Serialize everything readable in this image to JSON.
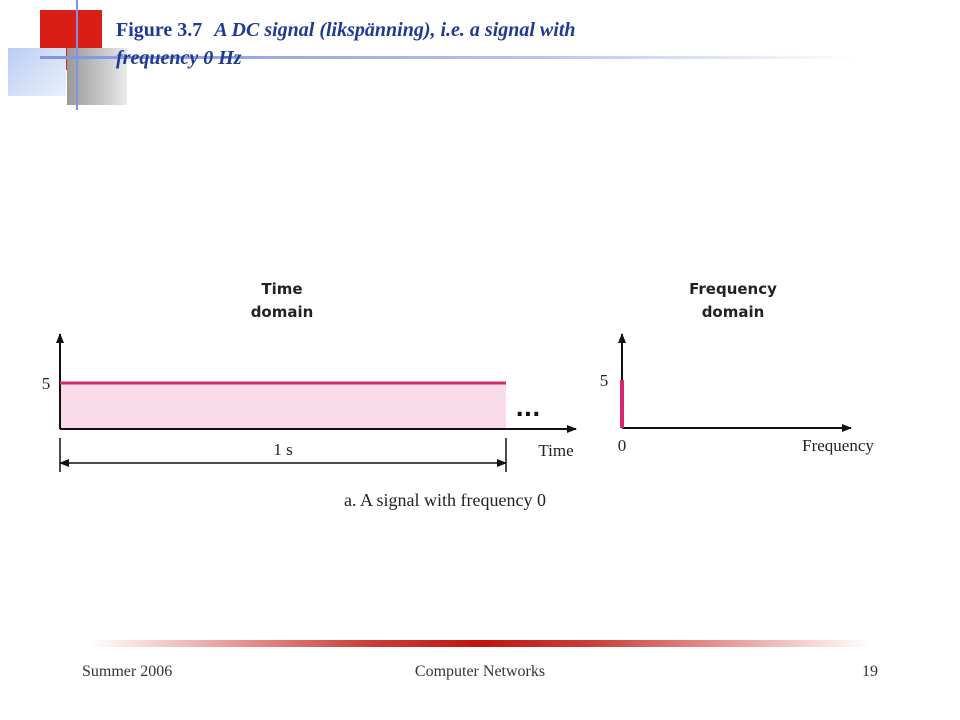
{
  "slide": {
    "figure_number": "Figure 3.7",
    "caption": "A DC signal (likspänning), i.e. a signal with frequency 0 Hz"
  },
  "colors": {
    "title": "#1f3a93",
    "signal": "#d6286f",
    "signal_fill": "#fadbe9",
    "axis": "#111111"
  },
  "chart_data": [
    {
      "type": "line",
      "title_lines": [
        "Time",
        "domain"
      ],
      "xlabel": "Time",
      "series": [
        {
          "x": [
            0,
            1
          ],
          "y": [
            5,
            5
          ]
        }
      ],
      "y_ticks": [
        {
          "value": 5,
          "label": "5"
        }
      ],
      "duration_label": "1 s",
      "continuation": "...",
      "shaded": true
    },
    {
      "type": "bar",
      "title_lines": [
        "Frequency",
        "domain"
      ],
      "xlabel": "Frequency",
      "categories": [
        "0"
      ],
      "values": [
        5
      ],
      "y_ticks": [
        {
          "value": 5,
          "label": "5"
        }
      ]
    }
  ],
  "figure_caption": "a. A signal with frequency 0",
  "footer": {
    "left": "Summer 2006",
    "center": "Computer Networks",
    "right": "19"
  }
}
